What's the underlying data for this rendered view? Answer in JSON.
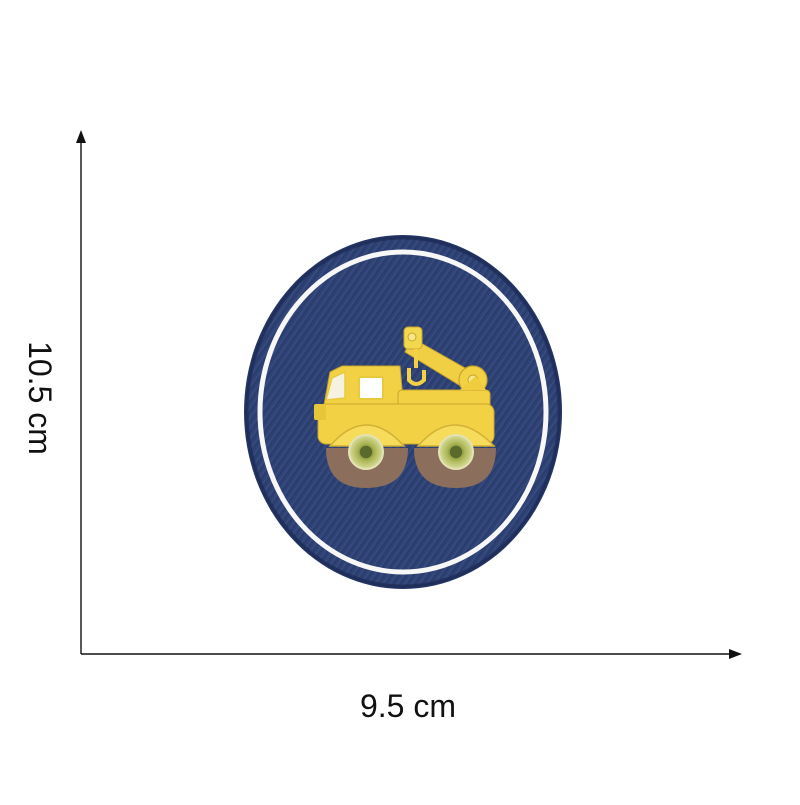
{
  "dimensions": {
    "width_label": "9.5 cm",
    "height_label": "10.5 cm"
  },
  "colors": {
    "patch_denim": "#2f4274",
    "patch_border": "#f7f7f7",
    "truck_yellow": "#f2d145",
    "wheel_brown": "#8b6e5c",
    "axis": "#111111"
  },
  "icons": {
    "patch": "embroidered-patch",
    "vehicle": "tow-truck-icon"
  }
}
